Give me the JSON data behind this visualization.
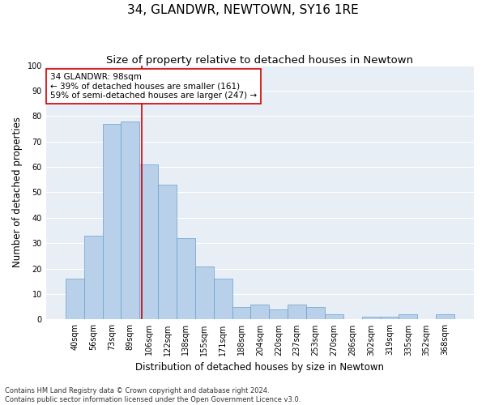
{
  "title": "34, GLANDWR, NEWTOWN, SY16 1RE",
  "subtitle": "Size of property relative to detached houses in Newtown",
  "xlabel": "Distribution of detached houses by size in Newtown",
  "ylabel": "Number of detached properties",
  "categories": [
    "40sqm",
    "56sqm",
    "73sqm",
    "89sqm",
    "106sqm",
    "122sqm",
    "138sqm",
    "155sqm",
    "171sqm",
    "188sqm",
    "204sqm",
    "220sqm",
    "237sqm",
    "253sqm",
    "270sqm",
    "286sqm",
    "302sqm",
    "319sqm",
    "335sqm",
    "352sqm",
    "368sqm"
  ],
  "values": [
    16,
    33,
    77,
    78,
    61,
    53,
    32,
    21,
    16,
    5,
    6,
    4,
    6,
    5,
    2,
    0,
    1,
    1,
    2,
    0,
    2
  ],
  "bar_color": "#b8d0ea",
  "bar_edge_color": "#6a9fc8",
  "vline_x_index": 3.62,
  "vline_color": "#cc0000",
  "annotation_text": "34 GLANDWR: 98sqm\n← 39% of detached houses are smaller (161)\n59% of semi-detached houses are larger (247) →",
  "annotation_box_color": "#ffffff",
  "annotation_box_edge_color": "#cc0000",
  "ylim": [
    0,
    100
  ],
  "yticks": [
    0,
    10,
    20,
    30,
    40,
    50,
    60,
    70,
    80,
    90,
    100
  ],
  "bg_color": "#e8eef5",
  "footer": "Contains HM Land Registry data © Crown copyright and database right 2024.\nContains public sector information licensed under the Open Government Licence v3.0.",
  "title_fontsize": 11,
  "subtitle_fontsize": 9.5,
  "ylabel_fontsize": 8.5,
  "xlabel_fontsize": 8.5,
  "tick_fontsize": 7,
  "annotation_fontsize": 7.5,
  "footer_fontsize": 6
}
